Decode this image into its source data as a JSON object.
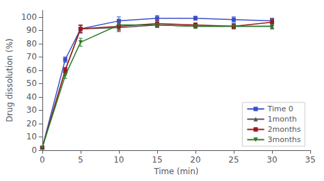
{
  "chart_data": {
    "type": "line",
    "x": [
      0,
      3,
      5,
      10,
      15,
      20,
      25,
      30
    ],
    "series": [
      {
        "name": "Time 0",
        "color": "#3a4fc7",
        "marker": "square",
        "line_style": "solid",
        "values": [
          2,
          68,
          91,
          97,
          99,
          99,
          98,
          97
        ],
        "yerr": [
          0.4,
          2,
          3,
          3,
          2,
          1.5,
          2,
          2
        ]
      },
      {
        "name": "1month",
        "color": "#555555",
        "marker": "triangle-up",
        "line_style": "solid",
        "values": [
          2,
          60,
          91,
          92,
          94,
          93,
          93,
          93
        ],
        "yerr": [
          0.4,
          2,
          2.5,
          2,
          1.5,
          1.5,
          1.5,
          2
        ]
      },
      {
        "name": "2months",
        "color": "#9c1a1a",
        "marker": "square",
        "line_style": "solid",
        "values": [
          2,
          60,
          91,
          93,
          95,
          94,
          93,
          96
        ],
        "yerr": [
          0.4,
          2,
          3,
          4,
          2,
          1.5,
          2,
          2.5
        ]
      },
      {
        "name": "3months",
        "color": "#2a7a2a",
        "marker": "triangle-down",
        "line_style": "solid",
        "values": [
          2,
          56,
          81,
          94,
          94,
          93,
          93,
          93
        ],
        "yerr": [
          0.4,
          2,
          3,
          2,
          2,
          1.5,
          1.5,
          2
        ]
      }
    ],
    "xlabel": "Time (min)",
    "ylabel": "Drug dissolution (%)",
    "xlim": [
      0,
      35
    ],
    "ylim": [
      0,
      105
    ],
    "xticks": [
      0,
      5,
      10,
      15,
      20,
      25,
      30,
      35
    ],
    "yticks": [
      0,
      10,
      20,
      30,
      40,
      50,
      60,
      70,
      80,
      90,
      100
    ],
    "legend": "lower right",
    "grid": false
  }
}
